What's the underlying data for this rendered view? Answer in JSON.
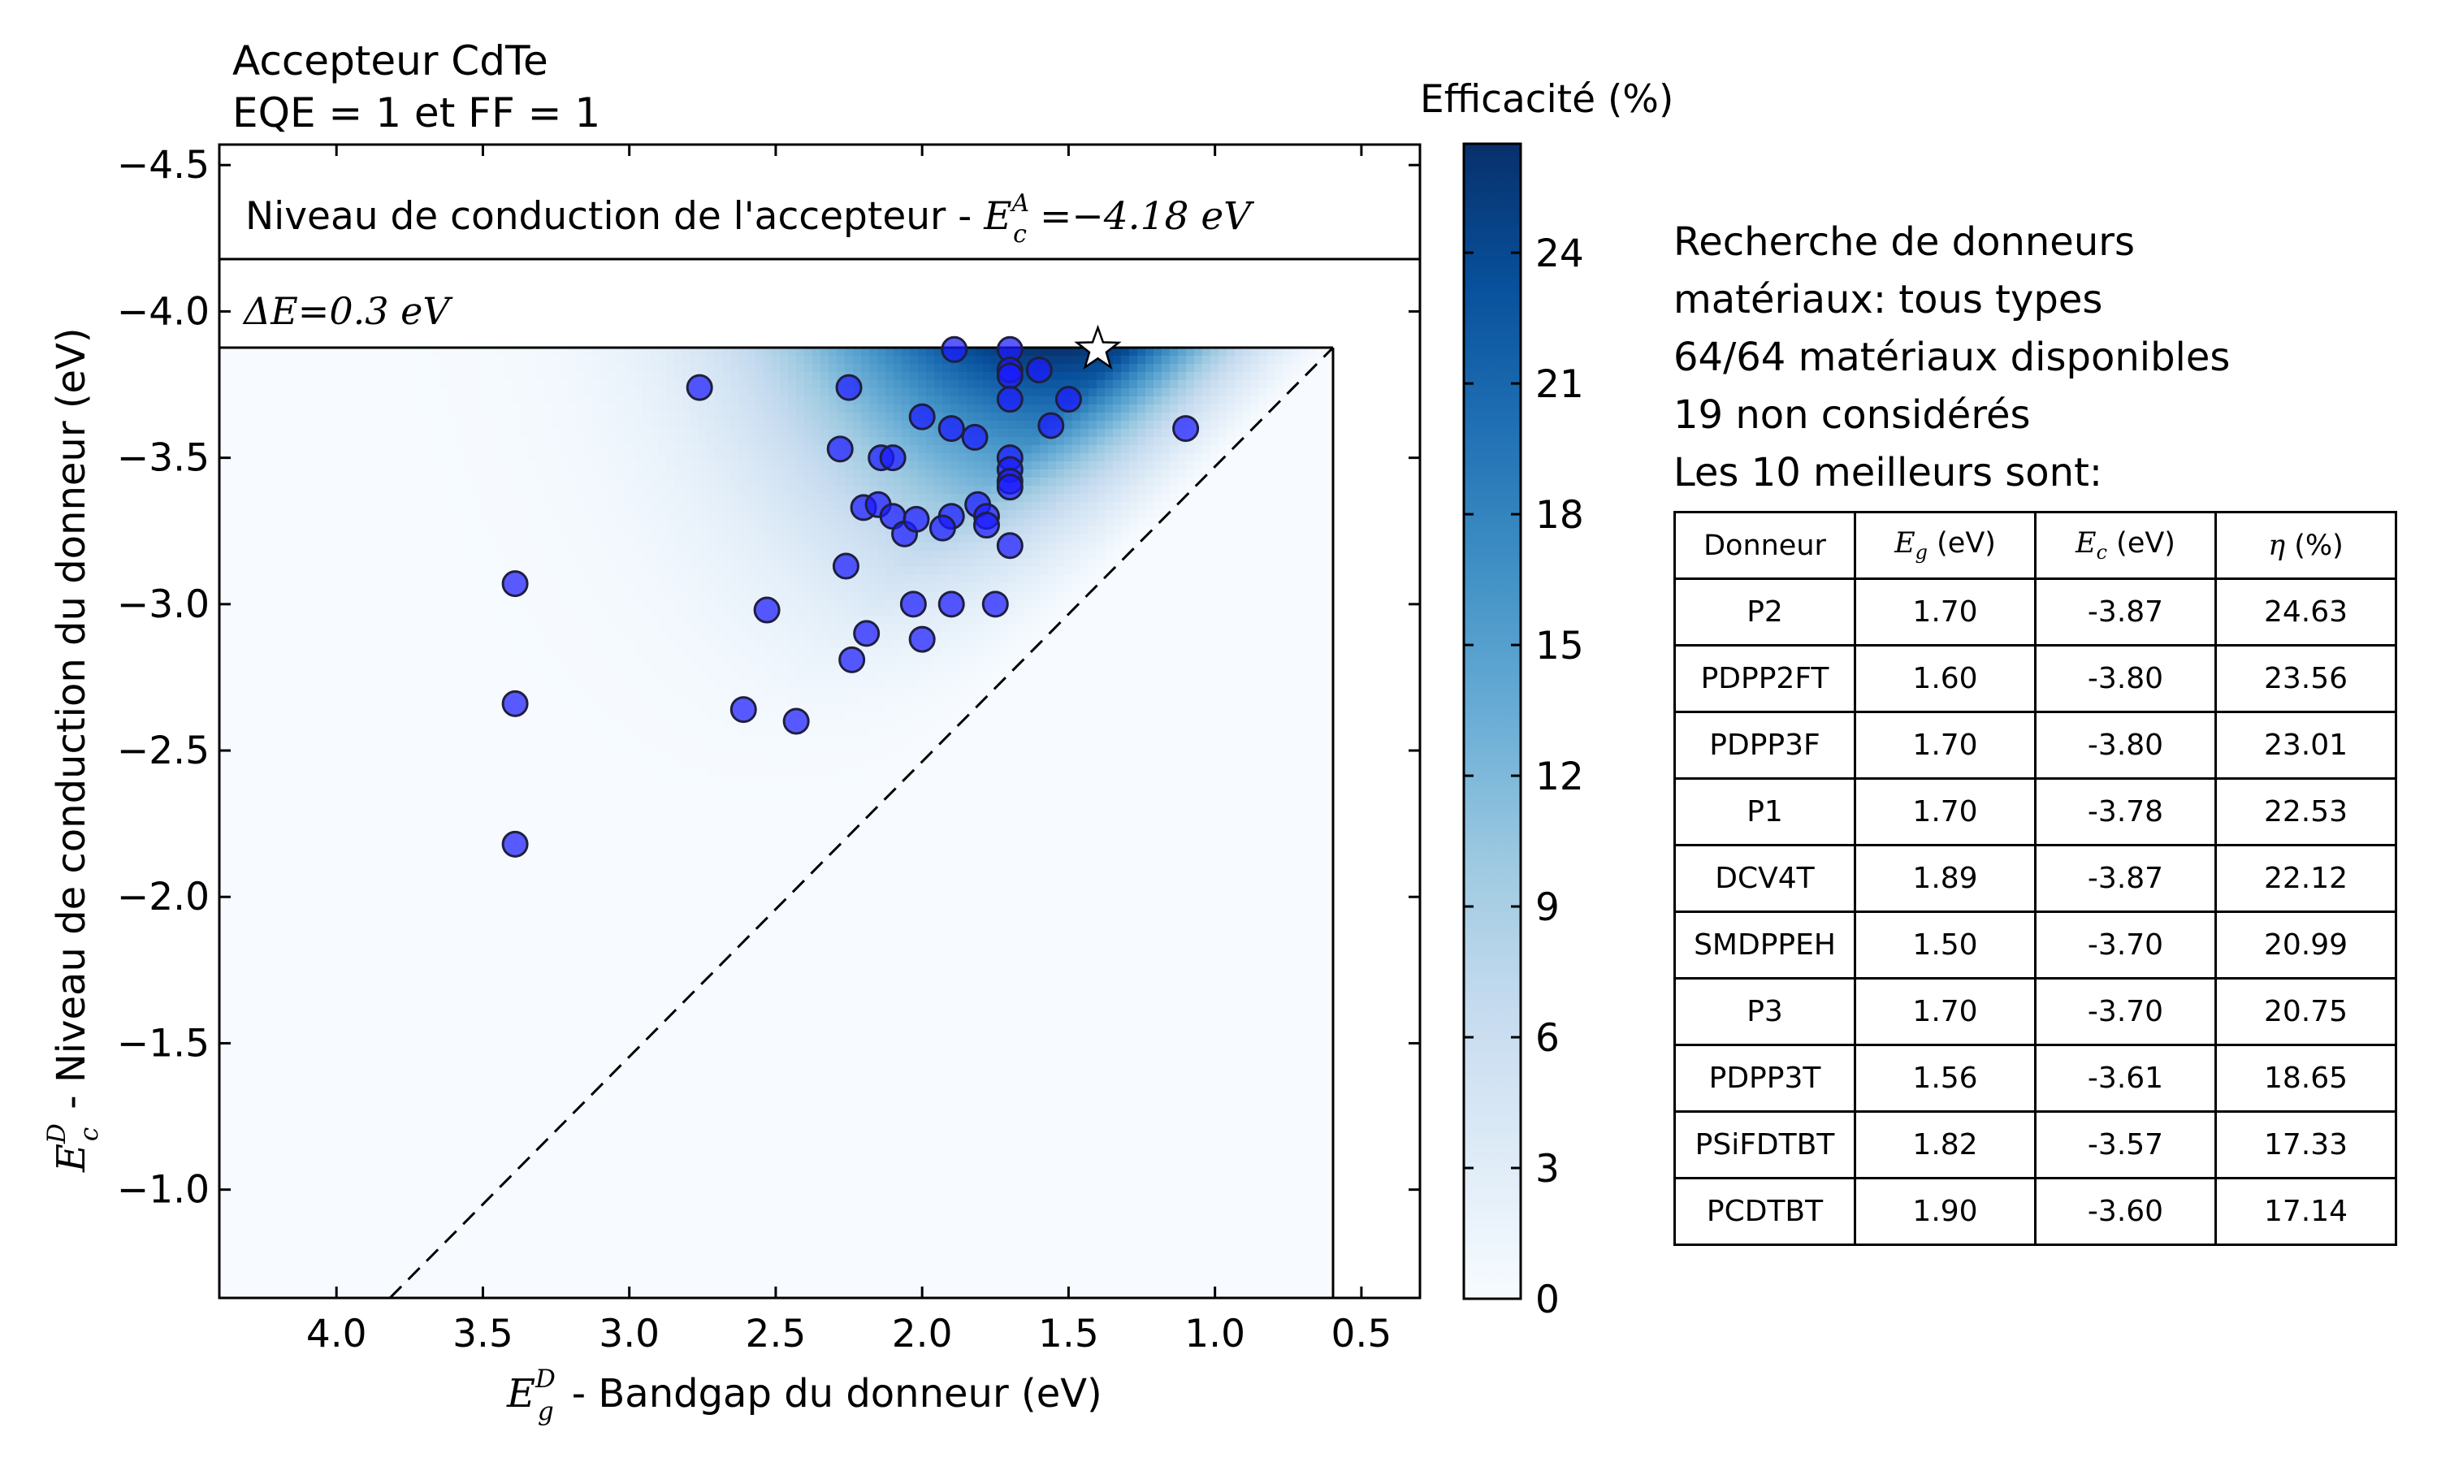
{
  "chart_data": {
    "type": "scatter",
    "title_lines": [
      "Accepteur CdTe",
      "EQE = 1 et FF = 1"
    ],
    "xlabel": "- Bandgap du donneur (eV)",
    "xlabel_symbol": "E",
    "xlabel_sup": "D",
    "xlabel_sub": "g",
    "ylabel": "- Niveau de conduction du donneur (eV)",
    "ylabel_symbol": "E",
    "ylabel_sup": "D",
    "ylabel_sub": "c",
    "xlim": [
      4.4,
      0.3
    ],
    "ylim": [
      -0.63,
      -4.57
    ],
    "x_ticks": [
      "4.0",
      "3.5",
      "3.0",
      "2.5",
      "2.0",
      "1.5",
      "1.0",
      "0.5"
    ],
    "x_tick_values": [
      4.0,
      3.5,
      3.0,
      2.5,
      2.0,
      1.5,
      1.0,
      0.5
    ],
    "y_ticks": [
      "−4.5",
      "−4.0",
      "−3.5",
      "−3.0",
      "−2.5",
      "−2.0",
      "−1.5",
      "−1.0"
    ],
    "y_tick_values": [
      -4.5,
      -4.0,
      -3.5,
      -3.0,
      -2.5,
      -2.0,
      -1.5,
      -1.0
    ],
    "acceptor_level": -4.18,
    "acceptor_label": "Niveau de conduction de l'accepteur - ",
    "acceptor_math_symbol": "E",
    "acceptor_math_sup": "A",
    "acceptor_math_sub": "c",
    "acceptor_math_value": "=−4.18 eV",
    "delta_label": "ΔE=0.3 eV",
    "delta_e": 0.3,
    "colorbar": {
      "label": "Efficacité (%)",
      "ticks": [
        "0",
        "3",
        "6",
        "9",
        "12",
        "15",
        "18",
        "21",
        "24"
      ],
      "tick_values": [
        0,
        3,
        6,
        9,
        12,
        15,
        18,
        21,
        24
      ],
      "max": 26.5,
      "color_low": "#f7fbff",
      "color_high": "#08306b"
    },
    "points": [
      {
        "x": 3.39,
        "y": -3.07
      },
      {
        "x": 3.39,
        "y": -2.66
      },
      {
        "x": 3.39,
        "y": -2.18
      },
      {
        "x": 2.76,
        "y": -3.74
      },
      {
        "x": 2.61,
        "y": -2.64
      },
      {
        "x": 2.53,
        "y": -2.98
      },
      {
        "x": 2.43,
        "y": -2.6
      },
      {
        "x": 2.25,
        "y": -3.74
      },
      {
        "x": 2.26,
        "y": -3.13
      },
      {
        "x": 2.28,
        "y": -3.53
      },
      {
        "x": 2.24,
        "y": -2.81
      },
      {
        "x": 2.2,
        "y": -3.33
      },
      {
        "x": 2.19,
        "y": -2.9
      },
      {
        "x": 2.15,
        "y": -3.34
      },
      {
        "x": 2.14,
        "y": -3.5
      },
      {
        "x": 2.1,
        "y": -3.5
      },
      {
        "x": 2.1,
        "y": -3.3
      },
      {
        "x": 2.06,
        "y": -3.24
      },
      {
        "x": 2.02,
        "y": -3.29
      },
      {
        "x": 2.03,
        "y": -3.0
      },
      {
        "x": 2.0,
        "y": -2.88
      },
      {
        "x": 2.0,
        "y": -3.64
      },
      {
        "x": 1.89,
        "y": -3.87
      },
      {
        "x": 1.9,
        "y": -3.6
      },
      {
        "x": 1.9,
        "y": -3.3
      },
      {
        "x": 1.9,
        "y": -3.0
      },
      {
        "x": 1.93,
        "y": -3.26
      },
      {
        "x": 1.82,
        "y": -3.57
      },
      {
        "x": 1.81,
        "y": -3.34
      },
      {
        "x": 1.78,
        "y": -3.3
      },
      {
        "x": 1.78,
        "y": -3.27
      },
      {
        "x": 1.75,
        "y": -3.0
      },
      {
        "x": 1.7,
        "y": -3.87
      },
      {
        "x": 1.7,
        "y": -3.8
      },
      {
        "x": 1.7,
        "y": -3.78
      },
      {
        "x": 1.7,
        "y": -3.7
      },
      {
        "x": 1.7,
        "y": -3.5
      },
      {
        "x": 1.7,
        "y": -3.46
      },
      {
        "x": 1.7,
        "y": -3.42
      },
      {
        "x": 1.7,
        "y": -3.4
      },
      {
        "x": 1.7,
        "y": -3.2
      },
      {
        "x": 1.6,
        "y": -3.8
      },
      {
        "x": 1.56,
        "y": -3.61
      },
      {
        "x": 1.5,
        "y": -3.7
      },
      {
        "x": 1.1,
        "y": -3.6
      }
    ],
    "star": {
      "x": 1.4,
      "y": -3.87
    }
  },
  "info": {
    "lines": [
      "Recherche de donneurs",
      "matériaux: tous types",
      "64/64 matériaux disponibles",
      "19 non considérés",
      "Les 10 meilleurs sont:"
    ]
  },
  "table": {
    "headers": [
      {
        "plain": "Donneur"
      },
      {
        "sym": "E",
        "sub": "g",
        "unit": " (eV)"
      },
      {
        "sym": "E",
        "sub": "c",
        "unit": " (eV)"
      },
      {
        "sym": "η",
        "unit": " (%)"
      }
    ],
    "rows": [
      [
        "P2",
        "1.70",
        "-3.87",
        "24.63"
      ],
      [
        "PDPP2FT",
        "1.60",
        "-3.80",
        "23.56"
      ],
      [
        "PDPP3F",
        "1.70",
        "-3.80",
        "23.01"
      ],
      [
        "P1",
        "1.70",
        "-3.78",
        "22.53"
      ],
      [
        "DCV4T",
        "1.89",
        "-3.87",
        "22.12"
      ],
      [
        "SMDPPEH",
        "1.50",
        "-3.70",
        "20.99"
      ],
      [
        "P3",
        "1.70",
        "-3.70",
        "20.75"
      ],
      [
        "PDPP3T",
        "1.56",
        "-3.61",
        "18.65"
      ],
      [
        "PSiFDTBT",
        "1.82",
        "-3.57",
        "17.33"
      ],
      [
        "PCDTBT",
        "1.90",
        "-3.60",
        "17.14"
      ]
    ]
  }
}
